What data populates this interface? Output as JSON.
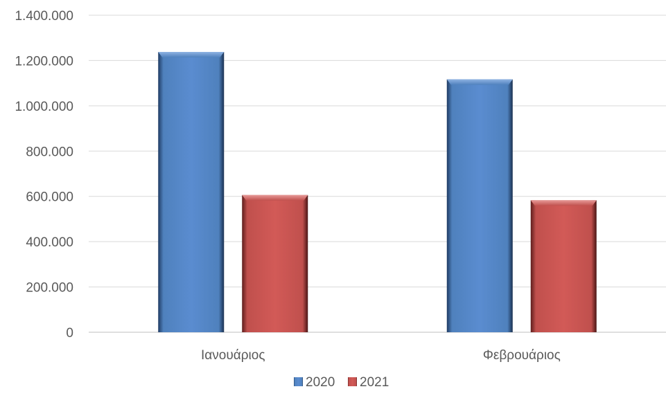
{
  "chart_data": {
    "type": "bar",
    "categories": [
      "Ιανουάριος",
      "Φεβρουάριος"
    ],
    "series": [
      {
        "name": "2020",
        "values": [
          1238000,
          1117000
        ],
        "color": "#4f81bd"
      },
      {
        "name": "2021",
        "values": [
          606000,
          583000
        ],
        "color": "#c0504d"
      }
    ],
    "yticks": [
      0,
      200000,
      400000,
      600000,
      800000,
      1000000,
      1200000,
      1400000
    ],
    "ytick_labels": [
      "0",
      "200.000",
      "400.000",
      "600.000",
      "800.000",
      "1.000.000",
      "1.200.000",
      "1.400.000"
    ],
    "ylim": [
      0,
      1400000
    ],
    "grid": true,
    "legend_position": "bottom"
  }
}
